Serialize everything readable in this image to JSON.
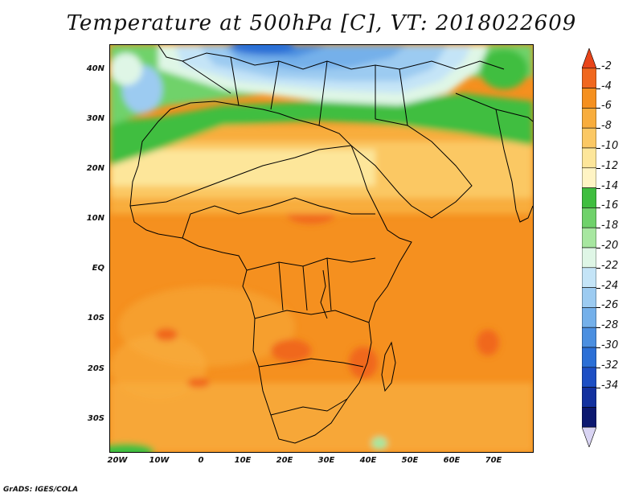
{
  "title": "Temperature at 500hPa [C], VT: 2018022609",
  "credit": "GrADS: IGES/COLA",
  "lat_labels": [
    "40N",
    "30N",
    "20N",
    "10N",
    "EQ",
    "10S",
    "20S",
    "30S"
  ],
  "lon_labels": [
    "20W",
    "10W",
    "0",
    "10E",
    "20E",
    "30E",
    "40E",
    "50E",
    "60E",
    "70E"
  ],
  "colorbar": {
    "labels": [
      "-2",
      "-4",
      "-6",
      "-8",
      "-10",
      "-12",
      "-14",
      "-16",
      "-18",
      "-20",
      "-22",
      "-24",
      "-26",
      "-28",
      "-30",
      "-32",
      "-34"
    ],
    "colors": [
      "#e8451a",
      "#f0671e",
      "#f5901f",
      "#f8ad3d",
      "#fbc864",
      "#fde69a",
      "#fff4c4",
      "#3fbe3f",
      "#6fd26a",
      "#a7e7a0",
      "#dff6e6",
      "#c4e4f7",
      "#9ccbf1",
      "#74b0ea",
      "#4b8fe0",
      "#2b6fd6",
      "#1d4fc4",
      "#13319f",
      "#0c1870",
      "#d9d4f3"
    ]
  }
}
